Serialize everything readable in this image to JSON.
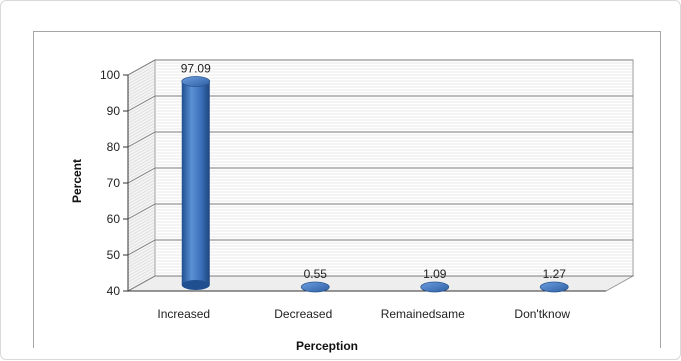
{
  "chart_data": {
    "type": "bar",
    "categories": [
      "Increased",
      "Decreased",
      "Remainedsame",
      "Don'tknow"
    ],
    "values": [
      97.09,
      0.55,
      1.09,
      1.27
    ],
    "data_labels": [
      "97.09",
      "0.55",
      "1.09",
      "1.27"
    ],
    "title": "",
    "xlabel": "Perception",
    "ylabel": "Percent",
    "ylim": [
      40,
      100
    ],
    "yticks": [
      40,
      50,
      60,
      70,
      80,
      90,
      100
    ],
    "grid": true,
    "style": "3d-cylinder",
    "bar_color": "#3a6fb8"
  }
}
